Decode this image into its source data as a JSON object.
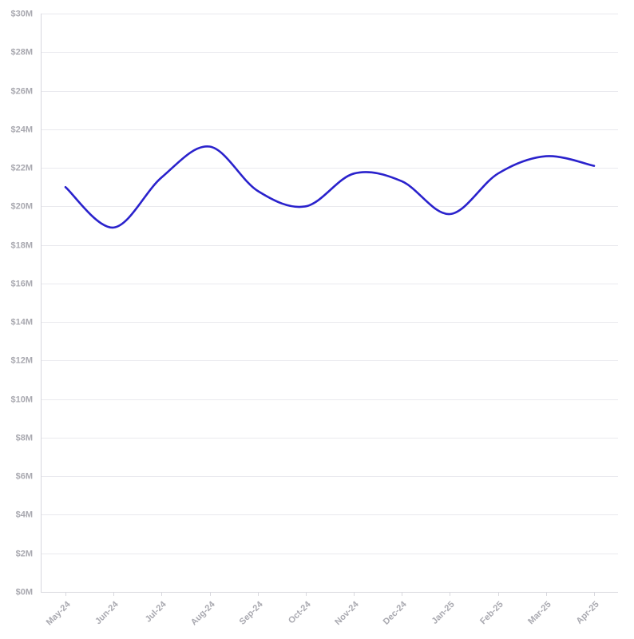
{
  "chart_data": {
    "type": "line",
    "title": "",
    "xlabel": "",
    "ylabel": "",
    "x": [
      "May-24",
      "Jun-24",
      "Jul-24",
      "Aug-24",
      "Sep-24",
      "Oct-24",
      "Nov-24",
      "Dec-24",
      "Jan-25",
      "Feb-25",
      "Mar-25",
      "Apr-25"
    ],
    "series": [
      {
        "values": [
          21.0,
          18.9,
          21.5,
          23.1,
          20.8,
          20.0,
          21.7,
          21.3,
          19.6,
          21.7,
          22.6,
          22.1
        ]
      }
    ],
    "ylim": [
      0,
      30
    ],
    "y_ticks": [
      0,
      2,
      4,
      6,
      8,
      10,
      12,
      14,
      16,
      18,
      20,
      22,
      24,
      26,
      28,
      30
    ],
    "y_tick_labels": [
      "$0M",
      "$2M",
      "$4M",
      "$6M",
      "$8M",
      "$10M",
      "$12M",
      "$14M",
      "$16M",
      "$18M",
      "$20M",
      "$22M",
      "$24M",
      "$26M",
      "$28M",
      "$30M"
    ],
    "grid": true,
    "legend": "none",
    "colors": {
      "line": "#2a22cc",
      "grid": "#e9e9ee",
      "axis": "#d8d8de",
      "tick_text": "#a9a9b0"
    }
  }
}
